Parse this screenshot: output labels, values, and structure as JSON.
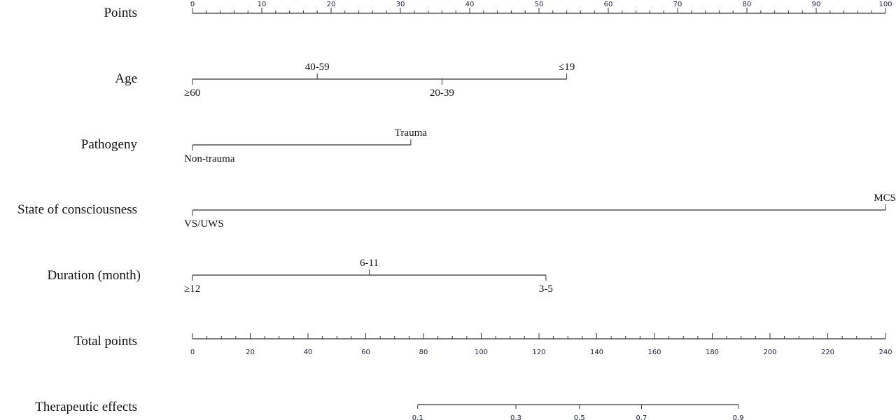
{
  "chart_data": {
    "type": "nomogram",
    "rows": [
      {
        "id": "points",
        "label": "Points",
        "kind": "scale",
        "min": 0,
        "max": 100,
        "major_ticks": [
          0,
          10,
          20,
          30,
          40,
          50,
          60,
          70,
          80,
          90,
          100
        ],
        "minor_step": 2
      },
      {
        "id": "age",
        "label": "Age",
        "kind": "categorical",
        "categories": [
          {
            "label": "≥60",
            "points": 0,
            "side": "below"
          },
          {
            "label": "40-59",
            "points": 18,
            "side": "above"
          },
          {
            "label": "20-39",
            "points": 36,
            "side": "below"
          },
          {
            "label": "≤19",
            "points": 54,
            "side": "above"
          }
        ]
      },
      {
        "id": "pathogeny",
        "label": "Pathogeny",
        "kind": "categorical",
        "categories": [
          {
            "label": "Non-trauma",
            "points": 0,
            "side": "below"
          },
          {
            "label": "Trauma",
            "points": 31.5,
            "side": "above"
          }
        ]
      },
      {
        "id": "consciousness",
        "label": "State of consciousness",
        "kind": "categorical",
        "categories": [
          {
            "label": "VS/UWS",
            "points": 0,
            "side": "below"
          },
          {
            "label": "MCS",
            "points": 100,
            "side": "above"
          }
        ]
      },
      {
        "id": "duration",
        "label": "Duration (month)",
        "kind": "categorical",
        "categories": [
          {
            "label": "≥12",
            "points": 0,
            "side": "below"
          },
          {
            "label": "6-11",
            "points": 25.5,
            "side": "above"
          },
          {
            "label": "3-5",
            "points": 51,
            "side": "below"
          }
        ]
      },
      {
        "id": "total",
        "label": "Total points",
        "kind": "scale",
        "min": 0,
        "max": 240,
        "major_ticks": [
          0,
          20,
          40,
          60,
          80,
          100,
          120,
          140,
          160,
          180,
          200,
          220,
          240
        ],
        "minor_step": 5
      },
      {
        "id": "effects",
        "label": "Therapeutic effects",
        "kind": "probability",
        "range": [
          0.1,
          0.9
        ],
        "tick_labels": [
          "0.1",
          "0.3",
          "0.5",
          "0.7",
          "0.9"
        ],
        "total_points_at_ticks": [
          78,
          112,
          134,
          155.5,
          189
        ]
      }
    ]
  }
}
